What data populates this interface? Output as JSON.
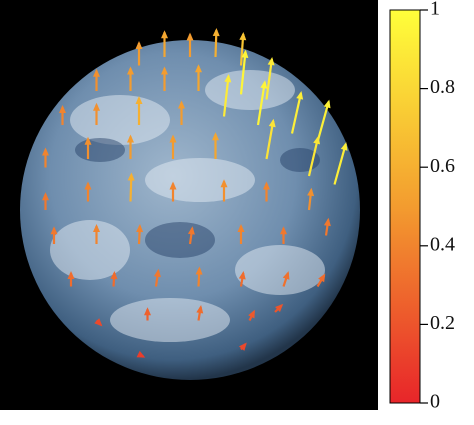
{
  "chart_data": {
    "type": "quiver",
    "xlim": [
      -1,
      1
    ],
    "ylim": [
      -1,
      1
    ],
    "colors": [
      "#e8252a",
      "#f39c2f",
      "#ffff3a"
    ],
    "clim": [
      0,
      1
    ],
    "cticks": [
      0,
      0.2,
      0.4,
      0.6,
      0.8,
      1
    ],
    "arrows": [
      {
        "x": -0.3,
        "y": 0.85,
        "u": 0,
        "v": 0.5,
        "value": 0.5
      },
      {
        "x": -0.15,
        "y": 0.9,
        "u": 0,
        "v": 0.55,
        "value": 0.55
      },
      {
        "x": 0,
        "y": 0.9,
        "u": 0,
        "v": 0.5,
        "value": 0.5
      },
      {
        "x": 0.15,
        "y": 0.9,
        "u": 0.02,
        "v": 0.6,
        "value": 0.6
      },
      {
        "x": 0.3,
        "y": 0.85,
        "u": 0.05,
        "v": 0.7,
        "value": 0.7
      },
      {
        "x": -0.55,
        "y": 0.7,
        "u": 0,
        "v": 0.45,
        "value": 0.45
      },
      {
        "x": -0.35,
        "y": 0.7,
        "u": 0,
        "v": 0.5,
        "value": 0.5
      },
      {
        "x": -0.15,
        "y": 0.7,
        "u": 0,
        "v": 0.5,
        "value": 0.5
      },
      {
        "x": 0.05,
        "y": 0.7,
        "u": 0,
        "v": 0.55,
        "value": 0.55
      },
      {
        "x": 0.3,
        "y": 0.68,
        "u": 0.1,
        "v": 0.95,
        "value": 0.95
      },
      {
        "x": 0.45,
        "y": 0.65,
        "u": 0.12,
        "v": 0.9,
        "value": 0.9
      },
      {
        "x": -0.75,
        "y": 0.5,
        "u": 0,
        "v": 0.4,
        "value": 0.4
      },
      {
        "x": -0.55,
        "y": 0.5,
        "u": 0,
        "v": 0.45,
        "value": 0.45
      },
      {
        "x": -0.3,
        "y": 0.5,
        "u": 0,
        "v": 0.6,
        "value": 0.6
      },
      {
        "x": -0.05,
        "y": 0.5,
        "u": 0,
        "v": 0.5,
        "value": 0.5
      },
      {
        "x": 0.2,
        "y": 0.55,
        "u": 0.1,
        "v": 0.9,
        "value": 0.9
      },
      {
        "x": 0.4,
        "y": 0.5,
        "u": 0.15,
        "v": 0.95,
        "value": 0.95
      },
      {
        "x": 0.6,
        "y": 0.45,
        "u": 0.2,
        "v": 0.9,
        "value": 0.92
      },
      {
        "x": 0.75,
        "y": 0.4,
        "u": 0.25,
        "v": 0.9,
        "value": 0.93
      },
      {
        "x": -0.85,
        "y": 0.25,
        "u": 0,
        "v": 0.4,
        "value": 0.4
      },
      {
        "x": -0.6,
        "y": 0.3,
        "u": 0,
        "v": 0.45,
        "value": 0.45
      },
      {
        "x": -0.35,
        "y": 0.3,
        "u": 0,
        "v": 0.5,
        "value": 0.5
      },
      {
        "x": -0.1,
        "y": 0.3,
        "u": 0,
        "v": 0.5,
        "value": 0.5
      },
      {
        "x": 0.15,
        "y": 0.3,
        "u": 0,
        "v": 0.55,
        "value": 0.55
      },
      {
        "x": 0.45,
        "y": 0.3,
        "u": 0.15,
        "v": 0.85,
        "value": 0.86
      },
      {
        "x": 0.7,
        "y": 0.2,
        "u": 0.2,
        "v": 0.85,
        "value": 0.88
      },
      {
        "x": 0.85,
        "y": 0.15,
        "u": 0.25,
        "v": 0.9,
        "value": 0.92
      },
      {
        "x": -0.85,
        "y": 0,
        "u": 0,
        "v": 0.35,
        "value": 0.35
      },
      {
        "x": -0.6,
        "y": 0.05,
        "u": 0,
        "v": 0.4,
        "value": 0.4
      },
      {
        "x": -0.35,
        "y": 0.05,
        "u": 0.02,
        "v": 0.6,
        "value": 0.6
      },
      {
        "x": -0.1,
        "y": 0.05,
        "u": 0,
        "v": 0.4,
        "value": 0.4
      },
      {
        "x": 0.2,
        "y": 0.05,
        "u": 0,
        "v": 0.45,
        "value": 0.45
      },
      {
        "x": 0.45,
        "y": 0.05,
        "u": 0,
        "v": 0.4,
        "value": 0.4
      },
      {
        "x": 0.7,
        "y": 0,
        "u": 0.05,
        "v": 0.45,
        "value": 0.45
      },
      {
        "x": -0.8,
        "y": -0.2,
        "u": 0,
        "v": 0.35,
        "value": 0.35
      },
      {
        "x": -0.55,
        "y": -0.2,
        "u": 0,
        "v": 0.4,
        "value": 0.4
      },
      {
        "x": -0.3,
        "y": -0.2,
        "u": 0.02,
        "v": 0.4,
        "value": 0.4
      },
      {
        "x": 0,
        "y": -0.2,
        "u": 0.05,
        "v": 0.35,
        "value": 0.35
      },
      {
        "x": 0.3,
        "y": -0.2,
        "u": 0,
        "v": 0.4,
        "value": 0.4
      },
      {
        "x": 0.55,
        "y": -0.2,
        "u": 0,
        "v": 0.35,
        "value": 0.35
      },
      {
        "x": 0.8,
        "y": -0.15,
        "u": 0.05,
        "v": 0.35,
        "value": 0.35
      },
      {
        "x": -0.7,
        "y": -0.45,
        "u": 0,
        "v": 0.3,
        "value": 0.3
      },
      {
        "x": -0.45,
        "y": -0.45,
        "u": 0.02,
        "v": 0.3,
        "value": 0.3
      },
      {
        "x": -0.2,
        "y": -0.45,
        "u": 0.05,
        "v": 0.35,
        "value": 0.35
      },
      {
        "x": 0.05,
        "y": -0.45,
        "u": 0.02,
        "v": 0.4,
        "value": 0.4
      },
      {
        "x": 0.3,
        "y": -0.45,
        "u": 0.05,
        "v": 0.3,
        "value": 0.3
      },
      {
        "x": 0.55,
        "y": -0.45,
        "u": 0.1,
        "v": 0.3,
        "value": 0.32
      },
      {
        "x": 0.75,
        "y": -0.45,
        "u": 0.15,
        "v": 0.25,
        "value": 0.3
      },
      {
        "x": -0.55,
        "y": -0.65,
        "u": 0.1,
        "v": -0.1,
        "value": 0.15
      },
      {
        "x": -0.25,
        "y": -0.65,
        "u": 0,
        "v": 0.25,
        "value": 0.25
      },
      {
        "x": 0.05,
        "y": -0.65,
        "u": 0.05,
        "v": 0.3,
        "value": 0.3
      },
      {
        "x": 0.35,
        "y": -0.65,
        "u": 0.1,
        "v": 0.2,
        "value": 0.22
      },
      {
        "x": 0.5,
        "y": -0.6,
        "u": 0.15,
        "v": 0.15,
        "value": 0.2
      },
      {
        "x": -0.3,
        "y": -0.85,
        "u": 0.1,
        "v": -0.05,
        "value": 0.1
      },
      {
        "x": 0.3,
        "y": -0.82,
        "u": 0.1,
        "v": 0.12,
        "value": 0.15
      }
    ]
  }
}
